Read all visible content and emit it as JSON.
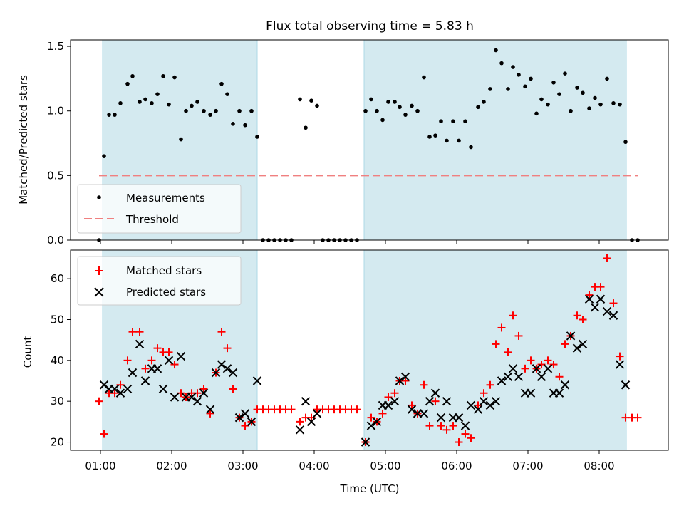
{
  "chart_data": [
    {
      "type": "scatter",
      "title": "Flux total observing time = 5.83 h",
      "xlabel": "",
      "ylabel": "Matched/Predicted stars",
      "ylim": [
        0,
        1.55
      ],
      "xlim": [
        0.58,
        8.97
      ],
      "x_ticks": [
        1,
        2,
        3,
        4,
        5,
        6,
        7,
        8
      ],
      "x_tick_labels_visible": false,
      "y_ticks": [
        0.0,
        0.5,
        1.0,
        1.5
      ],
      "y_tick_labels": [
        "0.0",
        "0.5",
        "1.0",
        "1.5"
      ],
      "shaded_intervals": [
        [
          1.03,
          3.2
        ],
        [
          4.7,
          8.38
        ]
      ],
      "shade_color": "#d4eaf0",
      "grid": false,
      "legend_position": "lower-left",
      "series": [
        {
          "name": "Measurements",
          "kind": "scatter",
          "marker": "dot",
          "color": "#000000",
          "points": [
            [
              0.98,
              0.0
            ],
            [
              1.05,
              0.65
            ],
            [
              1.12,
              0.97
            ],
            [
              1.2,
              0.97
            ],
            [
              1.28,
              1.06
            ],
            [
              1.38,
              1.21
            ],
            [
              1.45,
              1.27
            ],
            [
              1.55,
              1.07
            ],
            [
              1.63,
              1.09
            ],
            [
              1.72,
              1.06
            ],
            [
              1.8,
              1.13
            ],
            [
              1.88,
              1.27
            ],
            [
              1.96,
              1.05
            ],
            [
              2.04,
              1.26
            ],
            [
              2.13,
              0.78
            ],
            [
              2.2,
              1.0
            ],
            [
              2.28,
              1.04
            ],
            [
              2.36,
              1.07
            ],
            [
              2.45,
              1.0
            ],
            [
              2.54,
              0.97
            ],
            [
              2.62,
              1.0
            ],
            [
              2.7,
              1.21
            ],
            [
              2.78,
              1.13
            ],
            [
              2.86,
              0.9
            ],
            [
              2.95,
              1.0
            ],
            [
              3.03,
              0.89
            ],
            [
              3.12,
              1.0
            ],
            [
              3.2,
              0.8
            ],
            [
              3.28,
              0.0
            ],
            [
              3.36,
              0.0
            ],
            [
              3.44,
              0.0
            ],
            [
              3.52,
              0.0
            ],
            [
              3.6,
              0.0
            ],
            [
              3.68,
              0.0
            ],
            [
              3.8,
              1.09
            ],
            [
              3.88,
              0.87
            ],
            [
              3.96,
              1.08
            ],
            [
              4.04,
              1.04
            ],
            [
              4.12,
              0.0
            ],
            [
              4.2,
              0.0
            ],
            [
              4.28,
              0.0
            ],
            [
              4.36,
              0.0
            ],
            [
              4.44,
              0.0
            ],
            [
              4.52,
              0.0
            ],
            [
              4.6,
              0.0
            ],
            [
              4.72,
              1.0
            ],
            [
              4.8,
              1.09
            ],
            [
              4.88,
              1.0
            ],
            [
              4.96,
              0.93
            ],
            [
              5.04,
              1.07
            ],
            [
              5.13,
              1.07
            ],
            [
              5.2,
              1.03
            ],
            [
              5.28,
              0.97
            ],
            [
              5.37,
              1.04
            ],
            [
              5.45,
              1.0
            ],
            [
              5.54,
              1.26
            ],
            [
              5.62,
              0.8
            ],
            [
              5.7,
              0.81
            ],
            [
              5.78,
              0.92
            ],
            [
              5.86,
              0.77
            ],
            [
              5.95,
              0.92
            ],
            [
              6.03,
              0.77
            ],
            [
              6.12,
              0.92
            ],
            [
              6.2,
              0.72
            ],
            [
              6.3,
              1.03
            ],
            [
              6.38,
              1.07
            ],
            [
              6.47,
              1.17
            ],
            [
              6.55,
              1.47
            ],
            [
              6.63,
              1.37
            ],
            [
              6.72,
              1.17
            ],
            [
              6.79,
              1.34
            ],
            [
              6.87,
              1.28
            ],
            [
              6.96,
              1.19
            ],
            [
              7.04,
              1.25
            ],
            [
              7.12,
              0.98
            ],
            [
              7.19,
              1.09
            ],
            [
              7.28,
              1.05
            ],
            [
              7.36,
              1.22
            ],
            [
              7.44,
              1.13
            ],
            [
              7.52,
              1.29
            ],
            [
              7.6,
              1.0
            ],
            [
              7.69,
              1.18
            ],
            [
              7.77,
              1.14
            ],
            [
              7.86,
              1.02
            ],
            [
              7.94,
              1.1
            ],
            [
              8.02,
              1.05
            ],
            [
              8.11,
              1.25
            ],
            [
              8.2,
              1.06
            ],
            [
              8.29,
              1.05
            ],
            [
              8.37,
              0.76
            ],
            [
              8.46,
              0.0
            ],
            [
              8.54,
              0.0
            ]
          ]
        },
        {
          "name": "Threshold",
          "kind": "hline",
          "style": "dashed",
          "color": "#f08080",
          "y": 0.5,
          "x_range": [
            0.98,
            8.54
          ]
        }
      ]
    },
    {
      "type": "scatter",
      "title": "",
      "xlabel": "Time (UTC)",
      "ylabel": "Count",
      "ylim": [
        18,
        67
      ],
      "xlim": [
        0.58,
        8.97
      ],
      "x_ticks": [
        1,
        2,
        3,
        4,
        5,
        6,
        7,
        8
      ],
      "x_tick_labels": [
        "01:00",
        "02:00",
        "03:00",
        "04:00",
        "05:00",
        "06:00",
        "07:00",
        "08:00"
      ],
      "y_ticks": [
        20,
        30,
        40,
        50,
        60
      ],
      "y_tick_labels": [
        "20",
        "30",
        "40",
        "50",
        "60"
      ],
      "shaded_intervals": [
        [
          1.03,
          3.2
        ],
        [
          4.7,
          8.38
        ]
      ],
      "shade_color": "#d4eaf0",
      "grid": false,
      "legend_position": "upper-left",
      "series": [
        {
          "name": "Matched stars",
          "kind": "scatter",
          "marker": "plus",
          "color": "#ff0000",
          "points": [
            [
              0.98,
              30
            ],
            [
              1.05,
              22
            ],
            [
              1.12,
              32
            ],
            [
              1.2,
              32
            ],
            [
              1.28,
              34
            ],
            [
              1.38,
              40
            ],
            [
              1.45,
              47
            ],
            [
              1.55,
              47
            ],
            [
              1.63,
              38
            ],
            [
              1.72,
              40
            ],
            [
              1.8,
              43
            ],
            [
              1.88,
              42
            ],
            [
              1.96,
              42
            ],
            [
              2.04,
              39
            ],
            [
              2.13,
              32
            ],
            [
              2.2,
              31
            ],
            [
              2.28,
              32
            ],
            [
              2.36,
              32
            ],
            [
              2.45,
              33
            ],
            [
              2.54,
              27
            ],
            [
              2.62,
              37
            ],
            [
              2.7,
              47
            ],
            [
              2.78,
              43
            ],
            [
              2.86,
              33
            ],
            [
              2.95,
              26
            ],
            [
              3.03,
              24
            ],
            [
              3.12,
              25
            ],
            [
              3.2,
              28
            ],
            [
              3.28,
              28
            ],
            [
              3.36,
              28
            ],
            [
              3.44,
              28
            ],
            [
              3.52,
              28
            ],
            [
              3.6,
              28
            ],
            [
              3.68,
              28
            ],
            [
              3.8,
              25
            ],
            [
              3.88,
              26
            ],
            [
              3.96,
              26
            ],
            [
              4.04,
              28
            ],
            [
              4.12,
              28
            ],
            [
              4.2,
              28
            ],
            [
              4.28,
              28
            ],
            [
              4.36,
              28
            ],
            [
              4.44,
              28
            ],
            [
              4.52,
              28
            ],
            [
              4.6,
              28
            ],
            [
              4.72,
              20
            ],
            [
              4.8,
              26
            ],
            [
              4.88,
              25
            ],
            [
              4.96,
              27
            ],
            [
              5.04,
              31
            ],
            [
              5.13,
              32
            ],
            [
              5.2,
              35
            ],
            [
              5.28,
              35
            ],
            [
              5.37,
              29
            ],
            [
              5.45,
              27
            ],
            [
              5.54,
              34
            ],
            [
              5.62,
              24
            ],
            [
              5.7,
              30
            ],
            [
              5.78,
              24
            ],
            [
              5.86,
              23
            ],
            [
              5.95,
              24
            ],
            [
              6.03,
              20
            ],
            [
              6.12,
              22
            ],
            [
              6.2,
              21
            ],
            [
              6.3,
              29
            ],
            [
              6.38,
              32
            ],
            [
              6.47,
              34
            ],
            [
              6.55,
              44
            ],
            [
              6.63,
              48
            ],
            [
              6.72,
              42
            ],
            [
              6.79,
              51
            ],
            [
              6.87,
              46
            ],
            [
              6.96,
              38
            ],
            [
              7.04,
              40
            ],
            [
              7.12,
              38
            ],
            [
              7.19,
              39
            ],
            [
              7.28,
              40
            ],
            [
              7.36,
              39
            ],
            [
              7.44,
              36
            ],
            [
              7.52,
              44
            ],
            [
              7.6,
              46
            ],
            [
              7.69,
              51
            ],
            [
              7.77,
              50
            ],
            [
              7.86,
              56
            ],
            [
              7.94,
              58
            ],
            [
              8.02,
              58
            ],
            [
              8.11,
              65
            ],
            [
              8.2,
              54
            ],
            [
              8.29,
              41
            ],
            [
              8.37,
              26
            ],
            [
              8.46,
              26
            ],
            [
              8.54,
              26
            ]
          ]
        },
        {
          "name": "Predicted stars",
          "kind": "scatter",
          "marker": "x",
          "color": "#000000",
          "points": [
            [
              1.05,
              34
            ],
            [
              1.12,
              33
            ],
            [
              1.2,
              33
            ],
            [
              1.28,
              32
            ],
            [
              1.38,
              33
            ],
            [
              1.45,
              37
            ],
            [
              1.55,
              44
            ],
            [
              1.63,
              35
            ],
            [
              1.72,
              38
            ],
            [
              1.8,
              38
            ],
            [
              1.88,
              33
            ],
            [
              1.96,
              40
            ],
            [
              2.04,
              31
            ],
            [
              2.13,
              41
            ],
            [
              2.2,
              31
            ],
            [
              2.28,
              31
            ],
            [
              2.36,
              30
            ],
            [
              2.45,
              32
            ],
            [
              2.54,
              28
            ],
            [
              2.62,
              37
            ],
            [
              2.7,
              39
            ],
            [
              2.78,
              38
            ],
            [
              2.86,
              37
            ],
            [
              2.95,
              26
            ],
            [
              3.03,
              27
            ],
            [
              3.12,
              25
            ],
            [
              3.2,
              35
            ],
            [
              3.8,
              23
            ],
            [
              3.88,
              30
            ],
            [
              3.96,
              25
            ],
            [
              4.04,
              27
            ],
            [
              4.72,
              20
            ],
            [
              4.8,
              24
            ],
            [
              4.88,
              25
            ],
            [
              4.96,
              29
            ],
            [
              5.04,
              29
            ],
            [
              5.13,
              30
            ],
            [
              5.2,
              35
            ],
            [
              5.28,
              36
            ],
            [
              5.37,
              28
            ],
            [
              5.45,
              27
            ],
            [
              5.54,
              27
            ],
            [
              5.62,
              30
            ],
            [
              5.7,
              32
            ],
            [
              5.78,
              26
            ],
            [
              5.86,
              30
            ],
            [
              5.95,
              26
            ],
            [
              6.03,
              26
            ],
            [
              6.12,
              24
            ],
            [
              6.2,
              29
            ],
            [
              6.3,
              28
            ],
            [
              6.38,
              30
            ],
            [
              6.47,
              29
            ],
            [
              6.55,
              30
            ],
            [
              6.63,
              35
            ],
            [
              6.72,
              36
            ],
            [
              6.79,
              38
            ],
            [
              6.87,
              36
            ],
            [
              6.96,
              32
            ],
            [
              7.04,
              32
            ],
            [
              7.12,
              38
            ],
            [
              7.19,
              36
            ],
            [
              7.28,
              38
            ],
            [
              7.36,
              32
            ],
            [
              7.44,
              32
            ],
            [
              7.52,
              34
            ],
            [
              7.6,
              46
            ],
            [
              7.69,
              43
            ],
            [
              7.77,
              44
            ],
            [
              7.86,
              55
            ],
            [
              7.94,
              53
            ],
            [
              8.02,
              55
            ],
            [
              8.11,
              52
            ],
            [
              8.2,
              51
            ],
            [
              8.29,
              39
            ],
            [
              8.37,
              34
            ]
          ]
        }
      ]
    }
  ]
}
